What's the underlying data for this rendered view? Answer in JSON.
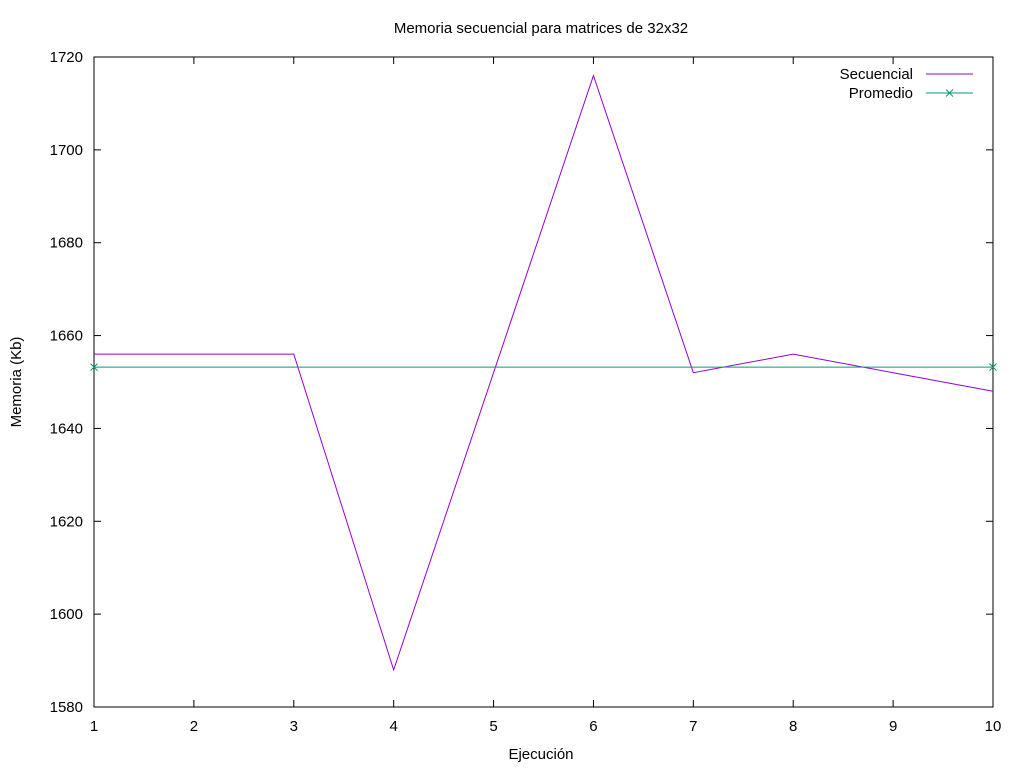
{
  "chart_data": {
    "type": "line",
    "title": "Memoria secuencial para matrices de 32x32",
    "xlabel": "Ejecución",
    "ylabel": "Memoria (Kb)",
    "xlim": [
      1,
      10
    ],
    "ylim": [
      1580,
      1720
    ],
    "x_ticks": [
      1,
      2,
      3,
      4,
      5,
      6,
      7,
      8,
      9,
      10
    ],
    "y_ticks": [
      1580,
      1600,
      1620,
      1640,
      1660,
      1680,
      1700,
      1720
    ],
    "grid": false,
    "legend_position": "top-right",
    "series": [
      {
        "name": "Secuencial",
        "color": "#9400d3",
        "marker": "none",
        "x": [
          1,
          2,
          3,
          4,
          5,
          6,
          7,
          8,
          9,
          10
        ],
        "values": [
          1656,
          1656,
          1656,
          1588,
          1652,
          1716,
          1652,
          1656,
          1652,
          1648
        ]
      },
      {
        "name": "Promedio",
        "color": "#009e73",
        "marker": "x",
        "x": [
          1,
          10
        ],
        "values": [
          1653.2,
          1653.2
        ]
      }
    ]
  }
}
